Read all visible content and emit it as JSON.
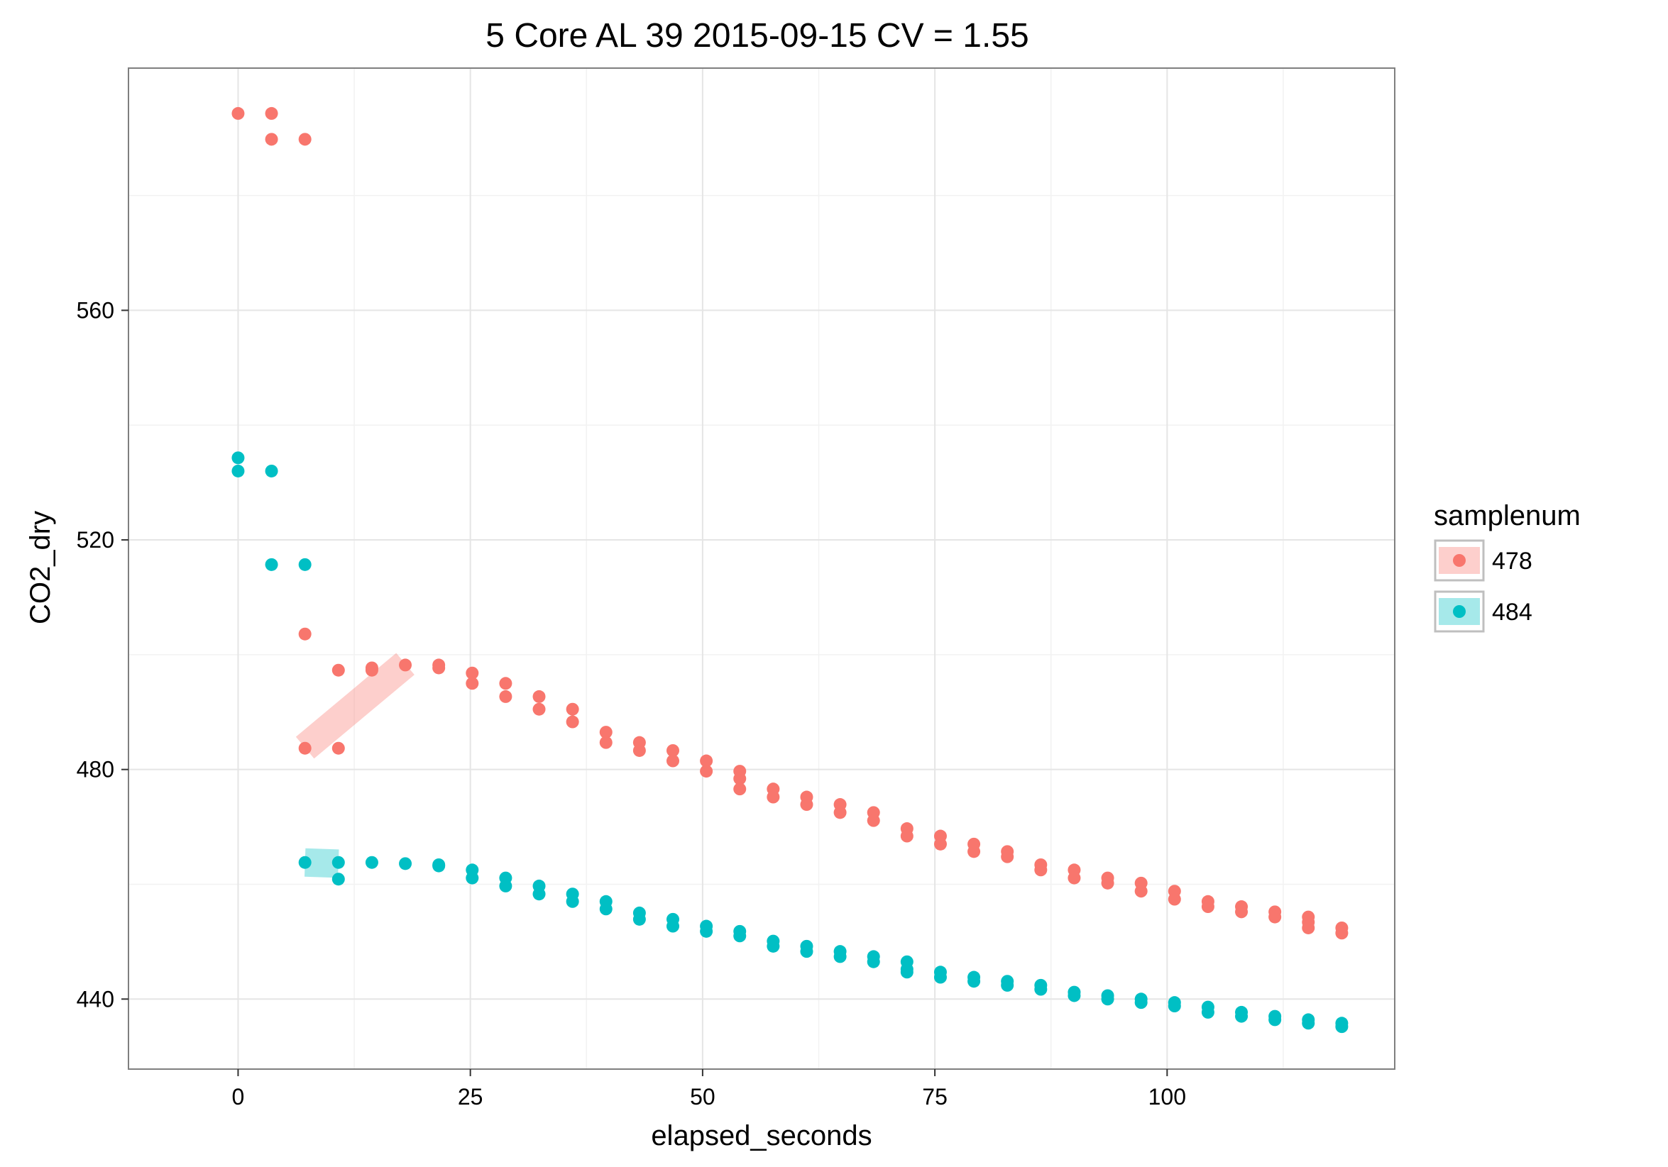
{
  "chart_data": {
    "type": "scatter",
    "title": "5 Core AL 39 2015-09-15 CV = 1.55",
    "xlabel": "elapsed_seconds",
    "ylabel": "CO2_dry",
    "xlim": [
      -11.8,
      124.5
    ],
    "ylim": [
      427.8,
      602.2
    ],
    "x_ticks": [
      0,
      25,
      50,
      75,
      100
    ],
    "y_ticks": [
      440,
      480,
      520,
      560
    ],
    "grid": true,
    "legend": {
      "title": "samplenum",
      "position": "right",
      "entries": [
        {
          "label": "478",
          "color": "#F8766D"
        },
        {
          "label": "484",
          "color": "#00BFC4"
        }
      ]
    },
    "series": [
      {
        "name": "478",
        "color": "#F8766D",
        "points": [
          [
            0,
            594.3
          ],
          [
            3.6,
            594.3
          ],
          [
            3.6,
            589.8
          ],
          [
            7.2,
            589.8
          ],
          [
            7.2,
            503.6
          ],
          [
            7.2,
            483.7
          ],
          [
            10.8,
            483.7
          ],
          [
            10.8,
            497.3
          ],
          [
            14.4,
            497.7
          ],
          [
            14.4,
            497.3
          ],
          [
            18,
            498.2
          ],
          [
            21.6,
            498.2
          ],
          [
            21.6,
            497.7
          ],
          [
            25.2,
            496.8
          ],
          [
            25.2,
            495
          ],
          [
            28.8,
            495
          ],
          [
            28.8,
            492.7
          ],
          [
            32.4,
            492.7
          ],
          [
            32.4,
            490.5
          ],
          [
            36,
            490.5
          ],
          [
            36,
            488.3
          ],
          [
            39.6,
            486.5
          ],
          [
            39.6,
            484.7
          ],
          [
            43.2,
            484.7
          ],
          [
            43.2,
            483.3
          ],
          [
            46.8,
            483.3
          ],
          [
            46.8,
            481.5
          ],
          [
            50.4,
            481.5
          ],
          [
            50.4,
            479.7
          ],
          [
            54,
            479.7
          ],
          [
            54,
            478.4
          ],
          [
            54,
            476.6
          ],
          [
            57.6,
            476.6
          ],
          [
            57.6,
            475.2
          ],
          [
            61.2,
            475.2
          ],
          [
            61.2,
            473.9
          ],
          [
            64.8,
            473.9
          ],
          [
            64.8,
            472.5
          ],
          [
            68.4,
            472.5
          ],
          [
            68.4,
            471.1
          ],
          [
            72,
            469.7
          ],
          [
            72,
            468.4
          ],
          [
            75.6,
            468.4
          ],
          [
            75.6,
            467
          ],
          [
            79.2,
            467
          ],
          [
            79.2,
            465.7
          ],
          [
            82.8,
            465.7
          ],
          [
            82.8,
            464.8
          ],
          [
            86.4,
            463.4
          ],
          [
            86.4,
            462.5
          ],
          [
            90,
            462.5
          ],
          [
            90,
            461.1
          ],
          [
            93.6,
            461.1
          ],
          [
            93.6,
            460.2
          ],
          [
            97.2,
            460.2
          ],
          [
            97.2,
            458.8
          ],
          [
            100.8,
            458.8
          ],
          [
            100.8,
            457.4
          ],
          [
            104.4,
            457
          ],
          [
            104.4,
            456.1
          ],
          [
            108,
            456.1
          ],
          [
            108,
            455.2
          ],
          [
            111.6,
            455.2
          ],
          [
            111.6,
            454.3
          ],
          [
            115.2,
            454.3
          ],
          [
            115.2,
            453.4
          ],
          [
            115.2,
            452.4
          ],
          [
            118.8,
            452.4
          ],
          [
            118.8,
            451.5
          ]
        ]
      },
      {
        "name": "484",
        "color": "#00BFC4",
        "points": [
          [
            0,
            534.3
          ],
          [
            0,
            532
          ],
          [
            3.6,
            532
          ],
          [
            3.6,
            515.7
          ],
          [
            7.2,
            515.7
          ],
          [
            7.2,
            463.8
          ],
          [
            10.8,
            463.8
          ],
          [
            10.8,
            460.9
          ],
          [
            14.4,
            463.8
          ],
          [
            18,
            463.6
          ],
          [
            21.6,
            463.4
          ],
          [
            21.6,
            463.2
          ],
          [
            25.2,
            462.5
          ],
          [
            25.2,
            461.1
          ],
          [
            28.8,
            461.1
          ],
          [
            28.8,
            459.7
          ],
          [
            32.4,
            459.7
          ],
          [
            32.4,
            458.3
          ],
          [
            36,
            458.3
          ],
          [
            36,
            457
          ],
          [
            39.6,
            457
          ],
          [
            39.6,
            455.7
          ],
          [
            43.2,
            455
          ],
          [
            43.2,
            453.9
          ],
          [
            46.8,
            453.9
          ],
          [
            46.8,
            452.7
          ],
          [
            50.4,
            452.7
          ],
          [
            50.4,
            451.8
          ],
          [
            54,
            451.8
          ],
          [
            54,
            451
          ],
          [
            57.6,
            450.1
          ],
          [
            57.6,
            449.2
          ],
          [
            61.2,
            449.2
          ],
          [
            61.2,
            448.3
          ],
          [
            64.8,
            448.3
          ],
          [
            64.8,
            447.4
          ],
          [
            68.4,
            447.4
          ],
          [
            68.4,
            446.5
          ],
          [
            72,
            446.5
          ],
          [
            72,
            445.2
          ],
          [
            72,
            444.7
          ],
          [
            75.6,
            444.7
          ],
          [
            75.6,
            443.8
          ],
          [
            79.2,
            443.8
          ],
          [
            79.2,
            443.1
          ],
          [
            82.8,
            443.1
          ],
          [
            82.8,
            442.4
          ],
          [
            86.4,
            442.4
          ],
          [
            86.4,
            441.7
          ],
          [
            90,
            441.2
          ],
          [
            90,
            440.6
          ],
          [
            93.6,
            440.6
          ],
          [
            93.6,
            440
          ],
          [
            97.2,
            440
          ],
          [
            97.2,
            439.4
          ],
          [
            100.8,
            439.4
          ],
          [
            100.8,
            438.8
          ],
          [
            104.4,
            438.6
          ],
          [
            104.4,
            437.7
          ],
          [
            108,
            437.7
          ],
          [
            108,
            437
          ],
          [
            111.6,
            437
          ],
          [
            111.6,
            436.4
          ],
          [
            115.2,
            436.4
          ],
          [
            115.2,
            435.8
          ],
          [
            118.8,
            435.8
          ],
          [
            118.8,
            435.2
          ]
        ]
      }
    ],
    "fit_segments": [
      {
        "series": "478",
        "color": "#F8766D",
        "x_range": [
          7.2,
          18
        ],
        "y_range": [
          483.8,
          498.4
        ]
      },
      {
        "series": "484",
        "color": "#00BFC4",
        "x_range": [
          7.2,
          10.8
        ],
        "y_range": [
          463.8,
          463.6
        ]
      }
    ]
  }
}
